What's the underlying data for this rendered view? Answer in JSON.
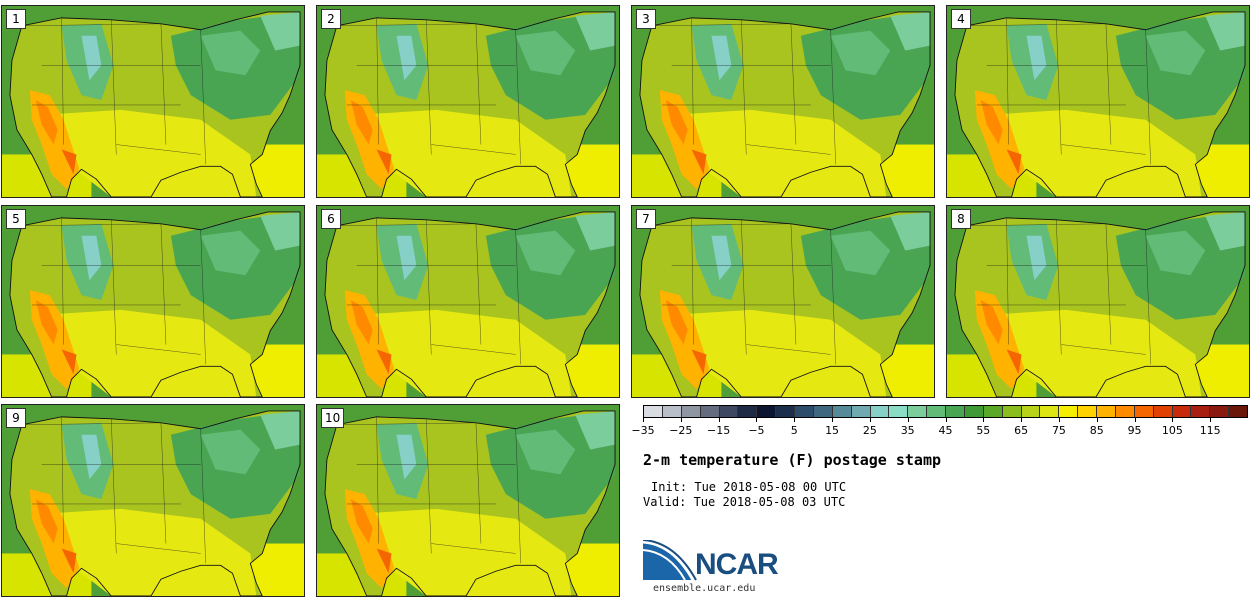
{
  "panels": [
    {
      "label": "1"
    },
    {
      "label": "2"
    },
    {
      "label": "3"
    },
    {
      "label": "4"
    },
    {
      "label": "5"
    },
    {
      "label": "6"
    },
    {
      "label": "7"
    },
    {
      "label": "8"
    },
    {
      "label": "9"
    },
    {
      "label": "10"
    }
  ],
  "colorbar": {
    "colors": [
      "#d9dde3",
      "#b9bfc8",
      "#8e95a3",
      "#646d80",
      "#3e4861",
      "#1f2a44",
      "#0c1630",
      "#1b2f4d",
      "#2d4b6a",
      "#3f6780",
      "#578a99",
      "#6eaaaf",
      "#86d0c8",
      "#8adcc4",
      "#7ccd9c",
      "#63bb78",
      "#4aa553",
      "#3f9a35",
      "#5aa828",
      "#8cbd1e",
      "#b8d21a",
      "#dde612",
      "#f5ee00",
      "#ffd200",
      "#ffb200",
      "#ff8a00",
      "#f56500",
      "#e04000",
      "#c82a0c",
      "#a81e10",
      "#8a1a10",
      "#6a1608"
    ],
    "tick_labels": [
      "-35",
      "-25",
      "-15",
      "-5",
      "5",
      "15",
      "25",
      "35",
      "45",
      "55",
      "65",
      "75",
      "85",
      "95",
      "105",
      "115"
    ]
  },
  "title": "2-m temperature (F) postage stamp",
  "init": "Init: Tue 2018-05-08 00 UTC",
  "valid": "Valid: Tue 2018-05-08 03 UTC",
  "logo_text": "NCAR",
  "site": "ensemble.ucar.edu"
}
